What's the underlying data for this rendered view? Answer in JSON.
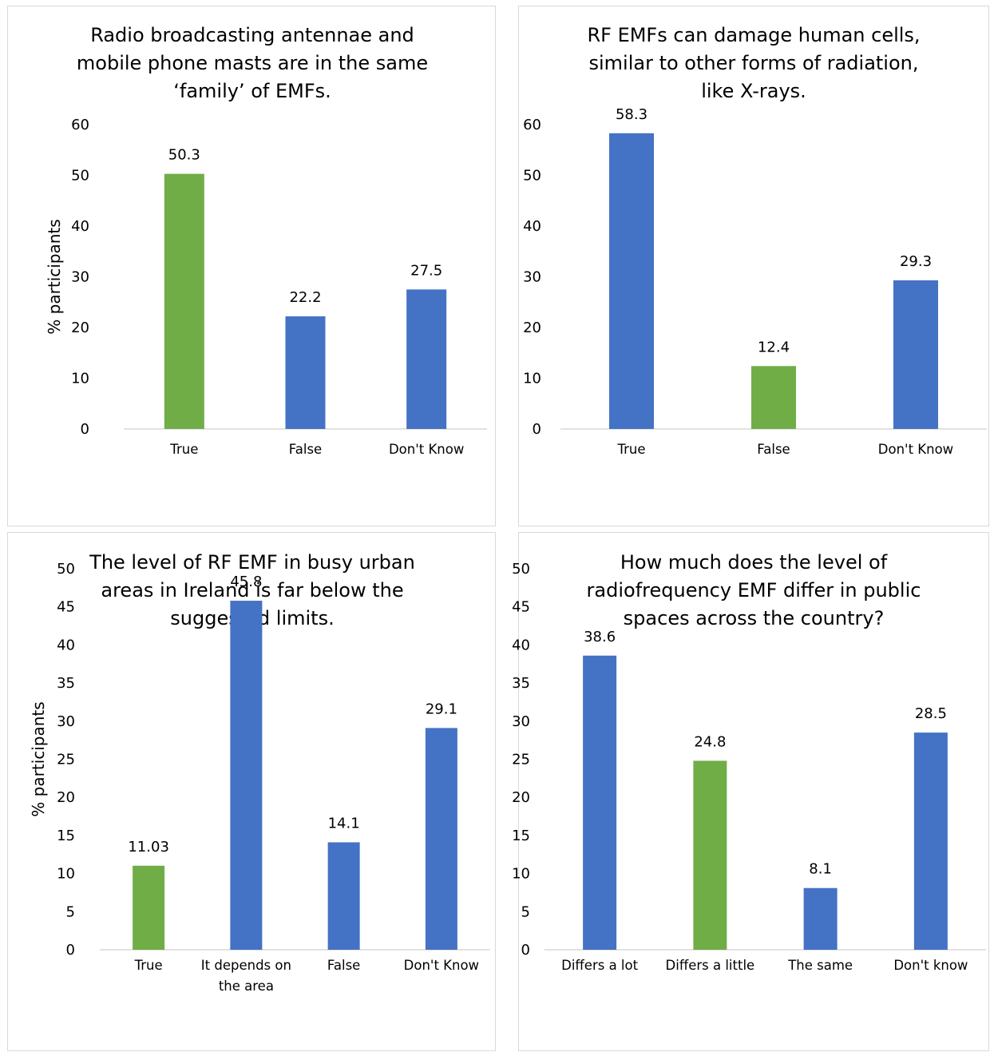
{
  "colors": {
    "blue": "#4472C4",
    "green": "#70AD47",
    "axis": "#d9d9d9",
    "border": "#d9d9d9"
  },
  "chart_data": [
    {
      "type": "bar",
      "title": [
        "Radio broadcasting antennae and",
        "mobile phone masts are in the same",
        "‘family’ of EMFs."
      ],
      "ylabel": "% participants",
      "ylim": [
        0,
        60
      ],
      "yticks": [
        0,
        10,
        20,
        30,
        40,
        50,
        60
      ],
      "categories": [
        [
          "True"
        ],
        [
          "False"
        ],
        [
          "Don't Know"
        ]
      ],
      "values": [
        50.3,
        22.2,
        27.5
      ],
      "value_labels": [
        "50.3",
        "22.2",
        "27.5"
      ],
      "bar_colors": [
        "green",
        "blue",
        "blue"
      ]
    },
    {
      "type": "bar",
      "title": [
        "RF EMFs can damage human cells,",
        "similar to other forms of radiation,",
        "like X-rays."
      ],
      "ylabel": "",
      "ylim": [
        0,
        60
      ],
      "yticks": [
        0,
        10,
        20,
        30,
        40,
        50,
        60
      ],
      "categories": [
        [
          "True"
        ],
        [
          "False"
        ],
        [
          "Don't Know"
        ]
      ],
      "values": [
        58.3,
        12.4,
        29.3
      ],
      "value_labels": [
        "58.3",
        "12.4",
        "29.3"
      ],
      "bar_colors": [
        "blue",
        "green",
        "blue"
      ]
    },
    {
      "type": "bar",
      "title": [
        "The level of RF EMF in busy urban",
        "areas in Ireland is far below the",
        "suggested limits."
      ],
      "ylabel": "% participants",
      "ylim": [
        0,
        50
      ],
      "yticks": [
        0,
        5,
        10,
        15,
        20,
        25,
        30,
        35,
        40,
        45,
        50
      ],
      "categories": [
        [
          "True"
        ],
        [
          "It depends on",
          "the area"
        ],
        [
          "False"
        ],
        [
          "Don't Know"
        ]
      ],
      "values": [
        11.03,
        45.8,
        14.1,
        29.1
      ],
      "value_labels": [
        "11.03",
        "45.8",
        "14.1",
        "29.1"
      ],
      "bar_colors": [
        "green",
        "blue",
        "blue",
        "blue"
      ]
    },
    {
      "type": "bar",
      "title": [
        "How much does the level of",
        "radiofrequency EMF differ in public",
        "spaces across the country?"
      ],
      "ylabel": "",
      "ylim": [
        0,
        50
      ],
      "yticks": [
        0,
        5,
        10,
        15,
        20,
        25,
        30,
        35,
        40,
        45,
        50
      ],
      "categories": [
        [
          "Differs a lot"
        ],
        [
          "Differs a little"
        ],
        [
          "The same"
        ],
        [
          "Don't know"
        ]
      ],
      "values": [
        38.6,
        24.8,
        8.1,
        28.5
      ],
      "value_labels": [
        "38.6",
        "24.8",
        "8.1",
        "28.5"
      ],
      "bar_colors": [
        "blue",
        "green",
        "blue",
        "blue"
      ]
    }
  ]
}
